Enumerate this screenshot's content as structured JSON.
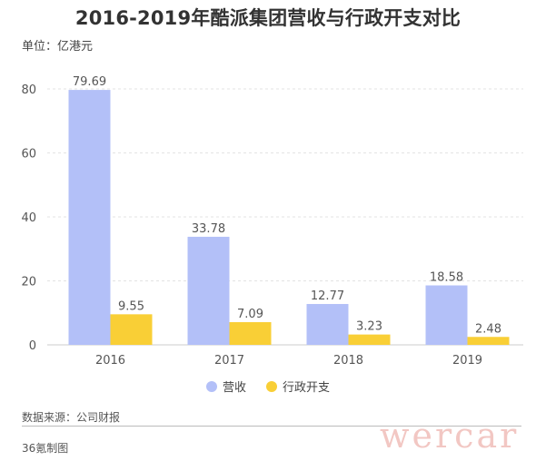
{
  "header": {
    "title": "2016-2019年酷派集团营收与行政开支对比",
    "unit": "单位：亿港元"
  },
  "footer": {
    "source": "数据来源：公司财报",
    "credit": "36氪制图",
    "watermark": "wercar"
  },
  "colors": {
    "revenue": "#b3c0f8",
    "admin": "#f9cf36",
    "grid": "#e3e3e3",
    "axis": "#cccccc"
  },
  "chart_data": {
    "type": "bar",
    "categories": [
      "2016",
      "2017",
      "2018",
      "2019"
    ],
    "series": [
      {
        "name": "营收",
        "values": [
          79.69,
          33.78,
          12.77,
          18.58
        ]
      },
      {
        "name": "行政开支",
        "values": [
          9.55,
          7.09,
          3.23,
          2.48
        ]
      }
    ],
    "ylim": [
      0,
      80
    ],
    "yticks": [
      "0",
      "20",
      "40",
      "60",
      "80"
    ],
    "grid": true,
    "legend": "bottom-center"
  }
}
